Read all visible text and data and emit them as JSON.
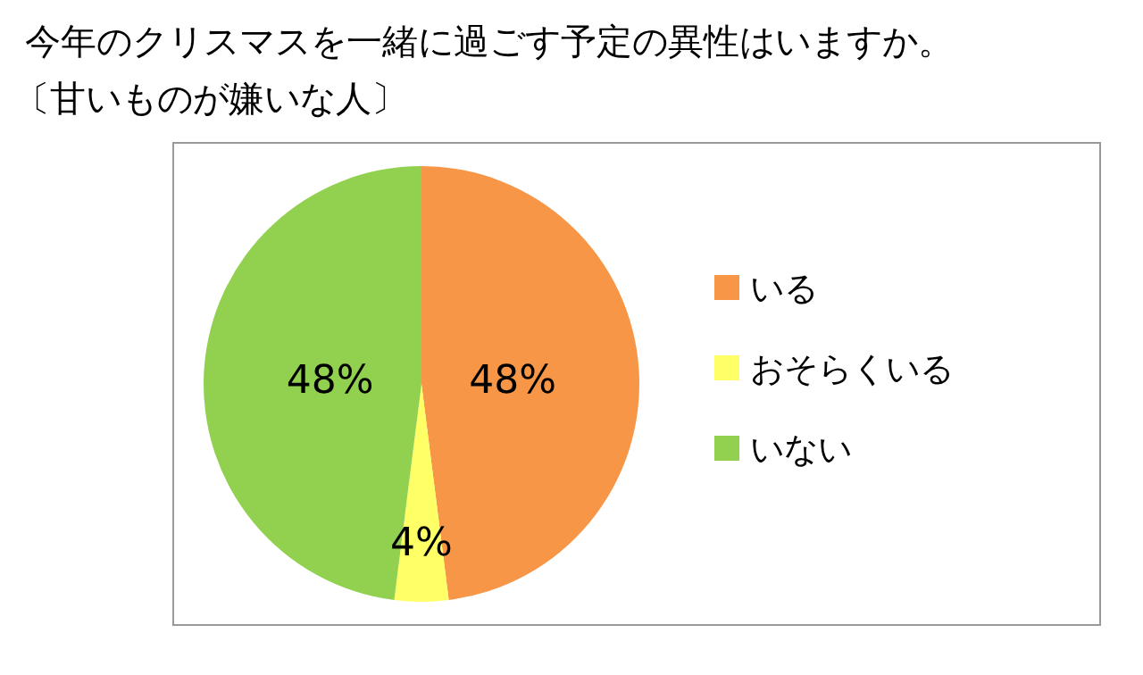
{
  "chart_data": {
    "type": "pie",
    "title": "今年のクリスマスを一緒に過ごす予定の異性はいますか。",
    "subtitle": "〔甘いものが嫌いな人〕",
    "categories": [
      "いる",
      "おそらくいる",
      "いない"
    ],
    "values": [
      48,
      4,
      48
    ],
    "colors": [
      "#f79646",
      "#ffff66",
      "#92d050"
    ],
    "value_labels": [
      "48%",
      "4%",
      "48%"
    ],
    "legend": "right"
  }
}
